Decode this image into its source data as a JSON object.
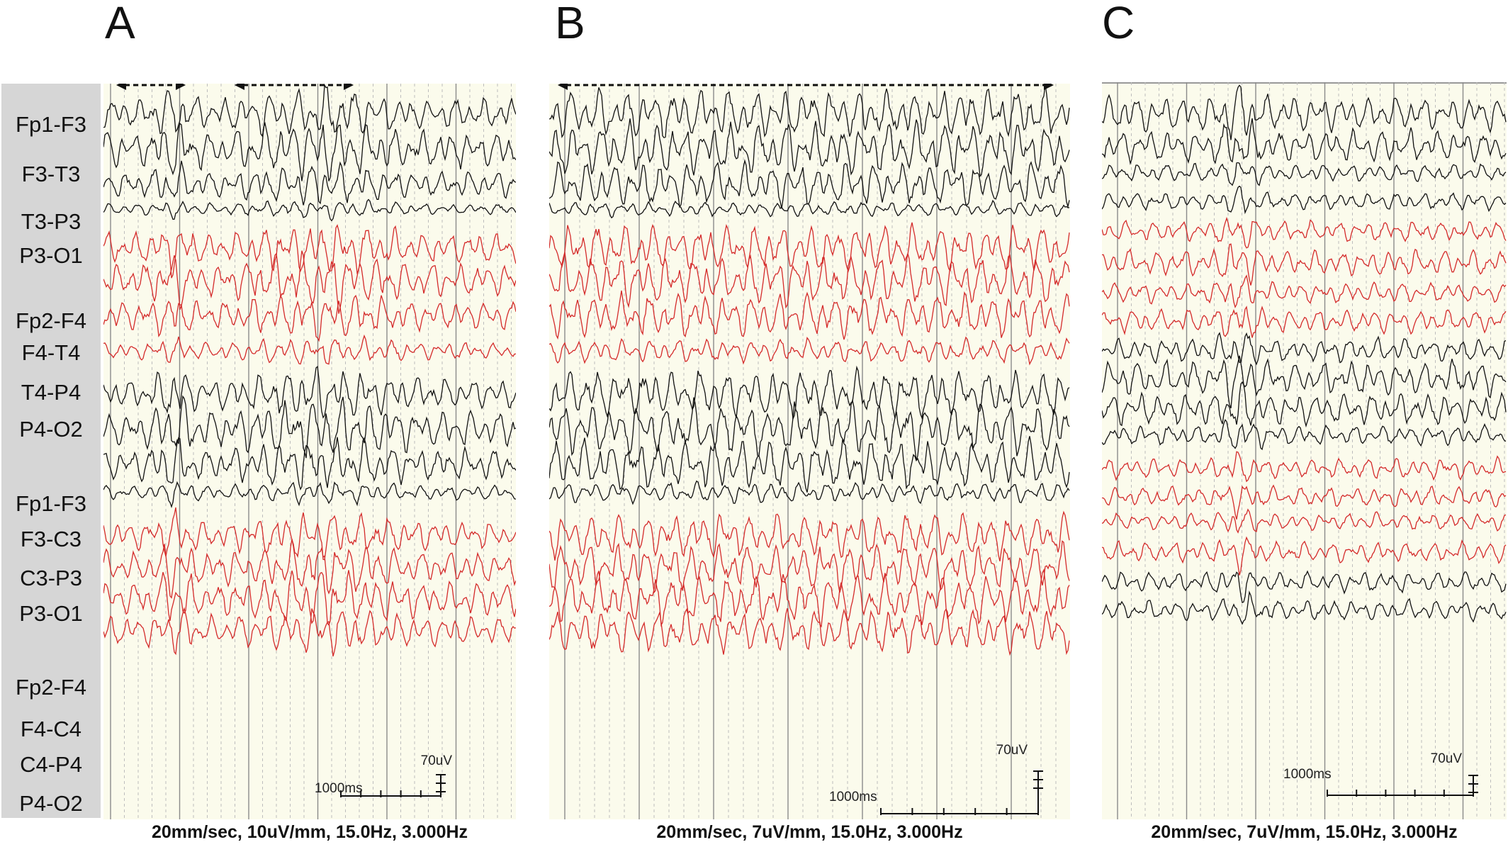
{
  "panels": [
    {
      "letter": "A",
      "caption": "20mm/sec, 10uV/mm, 15.0Hz, 3.000Hz",
      "scale_amplitude": "70uV",
      "scale_time": "1000ms"
    },
    {
      "letter": "B",
      "caption": "20mm/sec, 7uV/mm, 15.0Hz, 3.000Hz",
      "scale_amplitude": "70uV",
      "scale_time": "1000ms"
    },
    {
      "letter": "C",
      "caption": "20mm/sec, 7uV/mm, 15.0Hz, 3.000Hz",
      "scale_amplitude": "70uV",
      "scale_time": "1000ms"
    }
  ],
  "channels": [
    "Fp1-F3",
    "F3-T3",
    "T3-P3",
    "P3-O1",
    "Fp2-F4",
    "F4-T4",
    "T4-P4",
    "P4-O2",
    "Fp1-F3",
    "F3-C3",
    "C3-P3",
    "P3-O1",
    "Fp2-F4",
    "F4-C4",
    "C4-P4",
    "P4-O2"
  ],
  "colors": {
    "left_channels": "#111111",
    "right_channels": "#d42a2a",
    "background": "#fbfbec",
    "gridline_major": "#8a8a8a",
    "gridline_minor": "#bdbdbd",
    "label_strip": "#d6d6d6"
  }
}
